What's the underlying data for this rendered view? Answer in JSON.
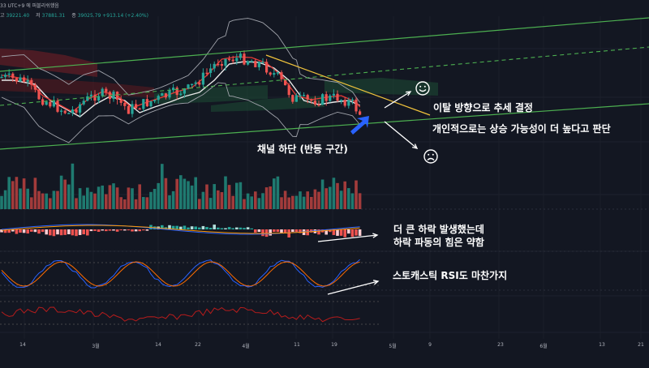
{
  "header": {
    "line1": "33 UTC+9 에 퍼블리쉬했음",
    "ohlc": [
      {
        "label": "고",
        "value": "39221.40"
      },
      {
        "label": "저",
        "value": "37881.31"
      },
      {
        "label": "종",
        "value": "39025.79 +913.14 (+2.40%)"
      }
    ]
  },
  "annotations": {
    "breakout": "이탈 방향으로 추세 결정",
    "opinion": "개인적으로는 상승 가능성이 더 높다고 판단",
    "channel_bottom": "채널 하단 (반등 구간)",
    "macd_line1": "더 큰 하락 발생했는데",
    "macd_line2": "하락 파동의 힘은 약함",
    "stoch": "스토캐스틱 RSI도 마찬가지"
  },
  "xaxis": {
    "labels": [
      "14",
      "3월",
      "14",
      "22",
      "4월",
      "11",
      "19",
      "5월",
      "9",
      "23",
      "6월",
      "13",
      "21"
    ]
  },
  "colors": {
    "background": "#131722",
    "up_candle": "#26a69a",
    "down_candle": "#ef5350",
    "channel_line": "#4caf50",
    "bollinger": "#a0a3ab",
    "resistance": "#f0c33c",
    "arrow_blue": "#2962ff"
  },
  "icons": {
    "up_scenario": "smiley-face-icon",
    "down_scenario": "frowning-face-icon"
  },
  "chart_data": [
    {
      "type": "candlestick",
      "title": "",
      "note": "price panel with ascending channel (solid and dashed green lines), Bollinger bands, Ichimoku cloud"
    },
    {
      "type": "bar",
      "note": "volume histogram, teal and red bars"
    },
    {
      "type": "bar",
      "note": "MACD histogram"
    },
    {
      "type": "line",
      "note": "Stochastic RSI, blue and orange lines"
    },
    {
      "type": "line",
      "note": "RSI, red line"
    }
  ]
}
